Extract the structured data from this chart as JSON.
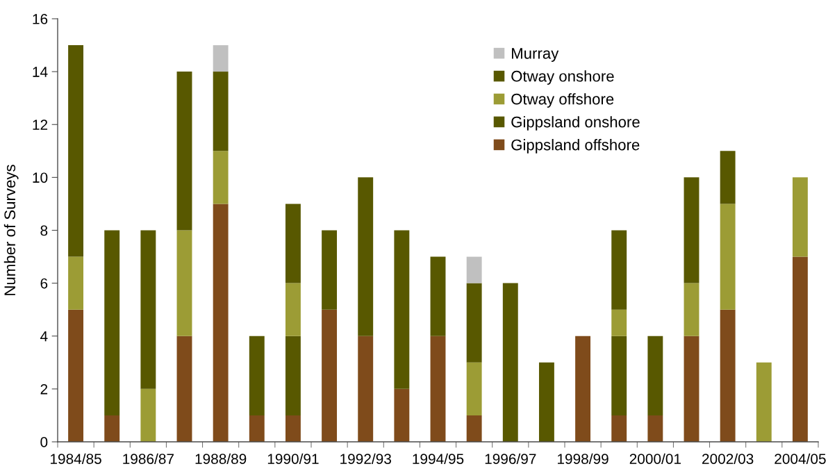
{
  "chart_data": {
    "type": "bar",
    "stacked": true,
    "ylabel": "Number of Surveys",
    "categories": [
      "1984/85",
      null,
      "1986/87",
      null,
      "1988/89",
      null,
      "1990/91",
      null,
      "1992/93",
      null,
      "1994/95",
      null,
      "1996/97",
      null,
      "1998/99",
      null,
      "2000/01",
      null,
      "2002/03",
      null,
      "2004/05"
    ],
    "series": [
      {
        "name": "Gippsland offshore",
        "color": "#7f4b1b",
        "values": [
          5,
          1,
          0,
          4,
          9,
          1,
          1,
          5,
          4,
          2,
          4,
          1,
          0,
          0,
          4,
          1,
          1,
          4,
          5,
          0,
          7
        ]
      },
      {
        "name": "Gippsland onshore",
        "color": "#585800",
        "values": [
          0,
          7,
          0,
          0,
          0,
          3,
          3,
          3,
          6,
          6,
          3,
          0,
          6,
          3,
          0,
          3,
          3,
          0,
          0,
          0,
          0
        ]
      },
      {
        "name": "Otway offshore",
        "color": "#9c9c35",
        "values": [
          2,
          0,
          2,
          4,
          2,
          0,
          2,
          0,
          0,
          0,
          0,
          2,
          0,
          0,
          0,
          1,
          0,
          2,
          4,
          3,
          3
        ]
      },
      {
        "name": "Otway onshore",
        "color": "#585800",
        "values": [
          8,
          0,
          6,
          6,
          3,
          0,
          3,
          0,
          0,
          0,
          0,
          3,
          0,
          0,
          0,
          3,
          0,
          4,
          2,
          0,
          0
        ]
      },
      {
        "name": "Murray",
        "color": "#c0c0c0",
        "values": [
          0,
          0,
          0,
          0,
          1,
          0,
          0,
          0,
          0,
          0,
          0,
          1,
          0,
          0,
          0,
          0,
          0,
          0,
          0,
          0,
          0
        ]
      }
    ],
    "ylim": [
      0,
      16
    ],
    "yticks": [
      0,
      2,
      4,
      6,
      8,
      10,
      12,
      14,
      16
    ],
    "grid": false,
    "legend": "top right"
  }
}
